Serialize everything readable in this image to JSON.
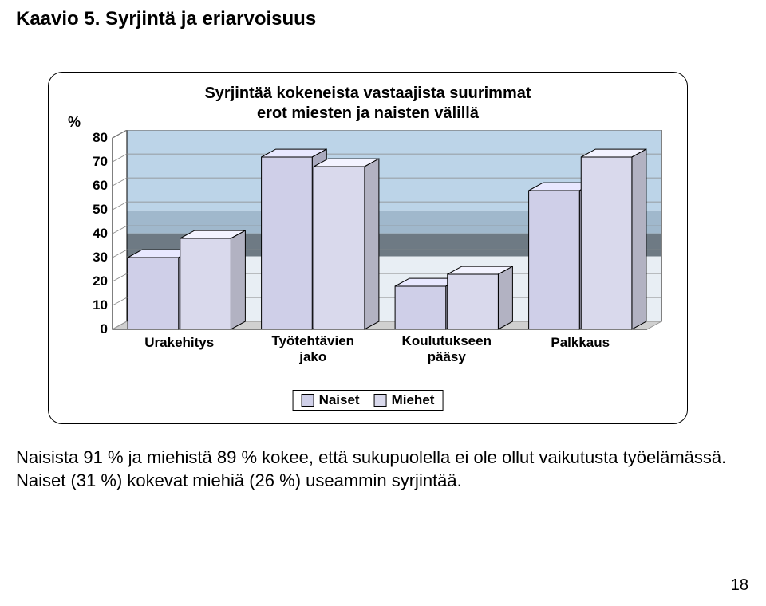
{
  "page_title": "Kaavio 5. Syrjintä ja eriarvoisuus",
  "page_number": "18",
  "body_text_1": "Naisista 91 % ja miehistä 89 % kokee, että sukupuolella ei ole ollut vaikutusta työelämässä.",
  "body_text_2": "Naiset (31 %) kokevat miehiä (26 %) useammin syrjintää.",
  "chart": {
    "type": "bar",
    "title_line1": "Syrjintää kokeneista vastaajista suurimmat",
    "title_line2": "erot miesten ja naisten välillä",
    "y_axis_label": "%",
    "ylim": [
      0,
      80
    ],
    "ytick_step": 10,
    "categories": [
      "Urakehitys",
      "Työtehtävien jako",
      "Koulutukseen pääsy",
      "Palkkaus"
    ],
    "series": [
      {
        "name": "Naiset",
        "color": "#cfcfe8",
        "values": [
          30,
          72,
          18,
          58
        ]
      },
      {
        "name": "Miehet",
        "color": "#d9d9ec",
        "values": [
          38,
          68,
          23,
          72
        ]
      }
    ],
    "floor_color": "#d0d0d0",
    "floor_edge": "#9a9a9a",
    "wall_top_color": "#bcd4e8",
    "wall_mid_color": "#a0b8cc",
    "wall_land_color": "#6e7a84",
    "wall_snow_color": "#e8eef4",
    "gridline_color": "#888888",
    "tick_fontsize": 17,
    "title_fontsize": 20,
    "cat_fontsize": 17,
    "bar_width": 0.38,
    "depth": 18,
    "outline_color": "#000000"
  },
  "legend": {
    "items": [
      {
        "label": "Naiset",
        "color": "#cfcfe8"
      },
      {
        "label": "Miehet",
        "color": "#d9d9ec"
      }
    ]
  }
}
